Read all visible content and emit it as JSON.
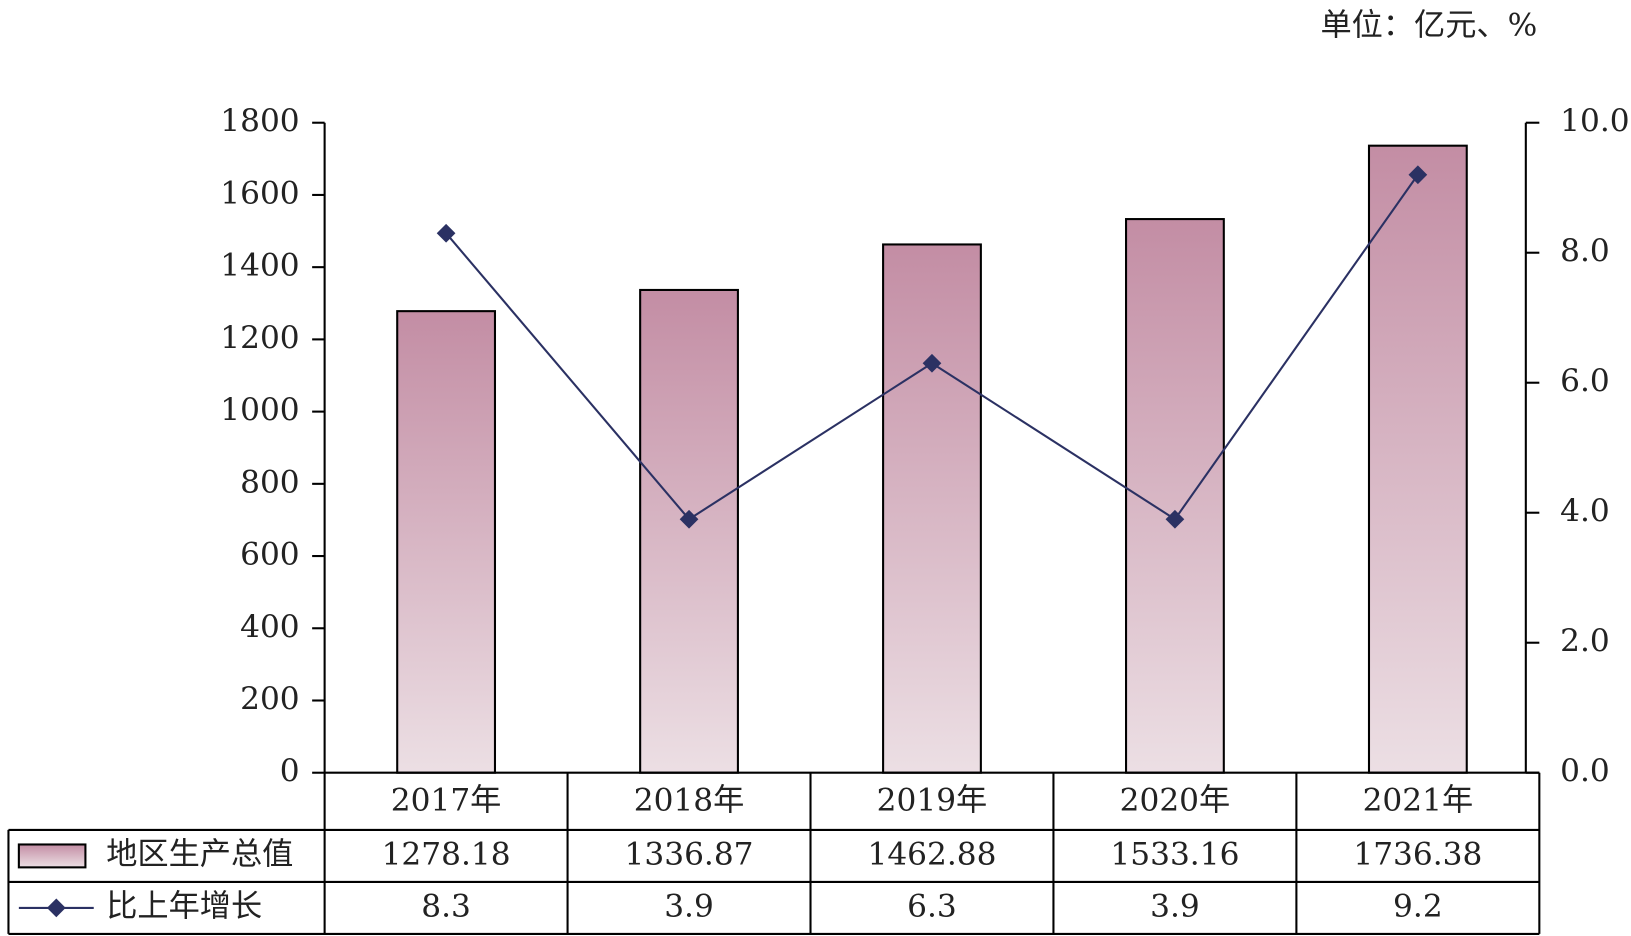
{
  "chart_data": {
    "type": "bar_line",
    "unit": "单位：亿元、%",
    "categories": [
      "2017年",
      "2018年",
      "2019年",
      "2020年",
      "2021年"
    ],
    "series": [
      {
        "name": "地区生产总值",
        "type": "bar",
        "color": "#c38da4",
        "values": [
          1278.18,
          1336.87,
          1462.88,
          1533.16,
          1736.38
        ]
      },
      {
        "name": "比上年增长",
        "type": "line",
        "axis": "y2",
        "color": "#2b3163",
        "values": [
          8.3,
          3.9,
          6.3,
          3.9,
          9.2
        ]
      }
    ],
    "ylim": [
      0,
      1800
    ],
    "yticks": [
      0,
      200,
      400,
      600,
      800,
      1000,
      1200,
      1400,
      1600,
      1800
    ],
    "y2lim": [
      0,
      10
    ],
    "y2ticks": [
      {
        "value": 0,
        "label": "0.0"
      },
      {
        "value": 2,
        "label": "2.0"
      },
      {
        "value": 4,
        "label": "4.0"
      },
      {
        "value": 6,
        "label": "6.0"
      },
      {
        "value": 8,
        "label": "8.0"
      },
      {
        "value": 10,
        "label": "10.0"
      }
    ],
    "data_table": true
  }
}
